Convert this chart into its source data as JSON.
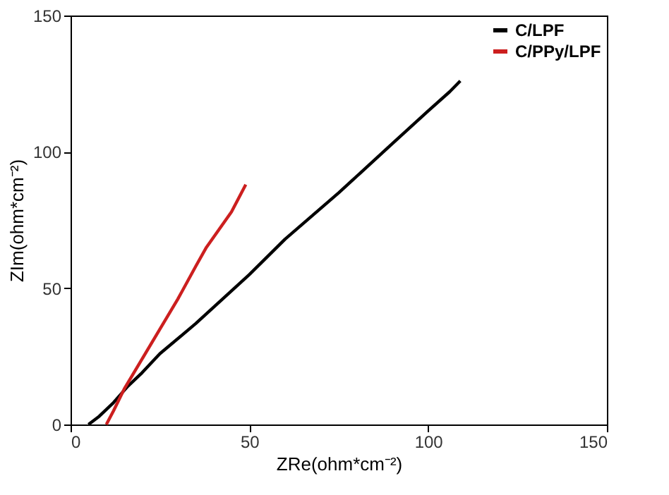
{
  "chart_data": {
    "type": "line",
    "xlabel": "ZRe(ohm*cm⁻²)",
    "ylabel": "ZIm(ohm*cm⁻²)",
    "xlim": [
      0,
      150
    ],
    "ylim": [
      0,
      150
    ],
    "xticks": [
      0,
      50,
      100,
      150
    ],
    "yticks": [
      0,
      50,
      100,
      150
    ],
    "grid": false,
    "legend": "top right",
    "marker": "none",
    "line_style": "solid",
    "series": [
      {
        "name": "C/LPF",
        "color": "#000000",
        "x": [
          5,
          8,
          12,
          16,
          20,
          25,
          35,
          50,
          60,
          75,
          90,
          100,
          106,
          109
        ],
        "values": [
          0,
          3,
          8,
          14,
          19,
          26,
          37,
          55,
          68,
          85,
          103,
          115,
          122,
          126
        ]
      },
      {
        "name": "C/PPy/LPF",
        "color": "#cc1f1f",
        "x": [
          10,
          12,
          15,
          20,
          25,
          30,
          35,
          38,
          45,
          49
        ],
        "values": [
          0,
          5,
          13,
          24,
          35,
          46,
          58,
          65,
          78,
          88
        ]
      }
    ]
  }
}
